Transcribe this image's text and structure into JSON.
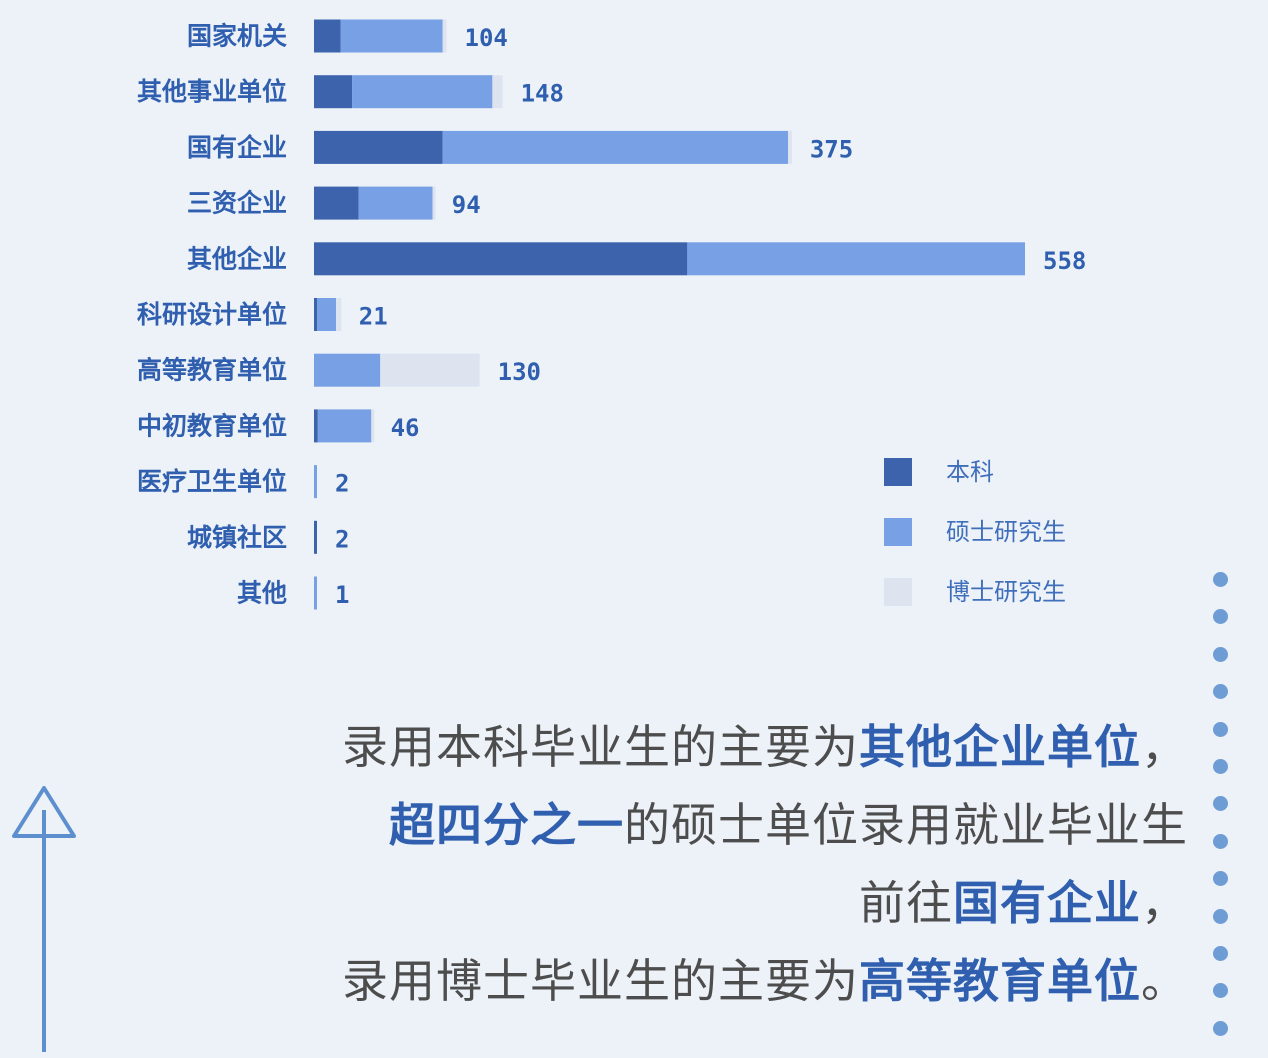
{
  "chart_data": {
    "type": "bar",
    "orientation": "horizontal",
    "stacked": true,
    "categories": [
      "国家机关",
      "其他事业单位",
      "国有企业",
      "三资企业",
      "其他企业",
      "科研设计单位",
      "高等教育单位",
      "中初教育单位",
      "医疗卫生单位",
      "城镇社区",
      "其他"
    ],
    "totals": [
      104,
      148,
      375,
      94,
      558,
      21,
      130,
      46,
      2,
      2,
      1
    ],
    "series": [
      {
        "name": "本科",
        "color": "#3d63ad",
        "values": [
          21,
          30,
          101,
          35,
          293,
          2,
          0,
          3,
          0,
          2,
          0
        ]
      },
      {
        "name": "硕士研究生",
        "color": "#78a0e4",
        "values": [
          80,
          110,
          271,
          58,
          265,
          15,
          52,
          42,
          2,
          0,
          1
        ]
      },
      {
        "name": "博士研究生",
        "color": "#dde4ef",
        "values": [
          3,
          8,
          3,
          1,
          0,
          4,
          78,
          1,
          0,
          0,
          0
        ]
      }
    ],
    "legend_position": "bottom-right",
    "grid": false
  },
  "summary": {
    "line1": {
      "pre": "录用本科毕业生的主要为",
      "hl": "其他企业单位",
      "post": "，"
    },
    "line2": {
      "hl": "超四分之一",
      "post": "的硕士单位录用就业毕业生"
    },
    "line3": {
      "pre": "前往",
      "hl": "国有企业",
      "post": "，"
    },
    "line4": {
      "pre": "录用博士毕业生的主要为",
      "hl": "高等教育单位",
      "post": "。"
    }
  },
  "decor": {
    "arrow_icon": "up-arrow-icon",
    "dots_icon": "dot-column"
  }
}
